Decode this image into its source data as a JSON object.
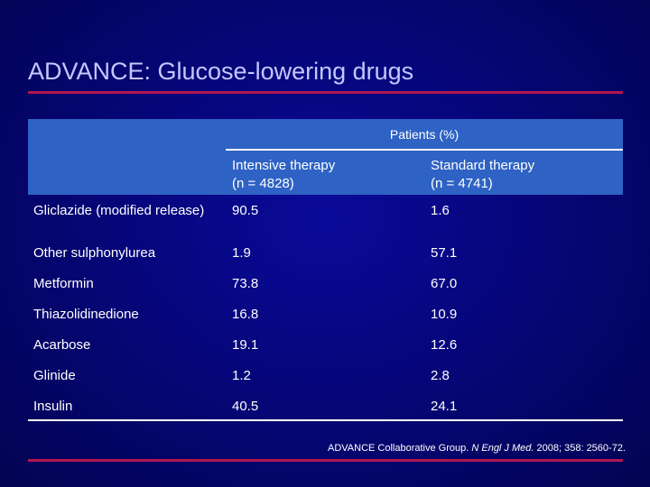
{
  "slide": {
    "title": "ADVANCE: Glucose-lowering drugs"
  },
  "table": {
    "group_header": "Patients (%)",
    "columns": [
      {
        "line1": "Intensive therapy",
        "line2": "(n = 4828)"
      },
      {
        "line1": "Standard therapy",
        "line2": "(n = 4741)"
      }
    ],
    "rows": [
      {
        "name": "Gliclazide (modified release)",
        "intensive": "90.5",
        "standard": "1.6"
      },
      {
        "name": "Other sulphonylurea",
        "intensive": "1.9",
        "standard": "57.1"
      },
      {
        "name": "Metformin",
        "intensive": "73.8",
        "standard": "67.0"
      },
      {
        "name": "Thiazolidinedione",
        "intensive": "16.8",
        "standard": "10.9"
      },
      {
        "name": "Acarbose",
        "intensive": "19.1",
        "standard": "12.6"
      },
      {
        "name": "Glinide",
        "intensive": "1.2",
        "standard": "2.8"
      },
      {
        "name": "Insulin",
        "intensive": "40.5",
        "standard": "24.1"
      }
    ]
  },
  "citation": {
    "authors": "ADVANCE Collaborative Group.",
    "journal": "N Engl J Med.",
    "details": "2008; 358: 2560-72."
  },
  "colors": {
    "background": "#06067a",
    "title": "#c6c6ff",
    "accent_rule": "#b0174f",
    "header_band": "#2e62c4"
  }
}
